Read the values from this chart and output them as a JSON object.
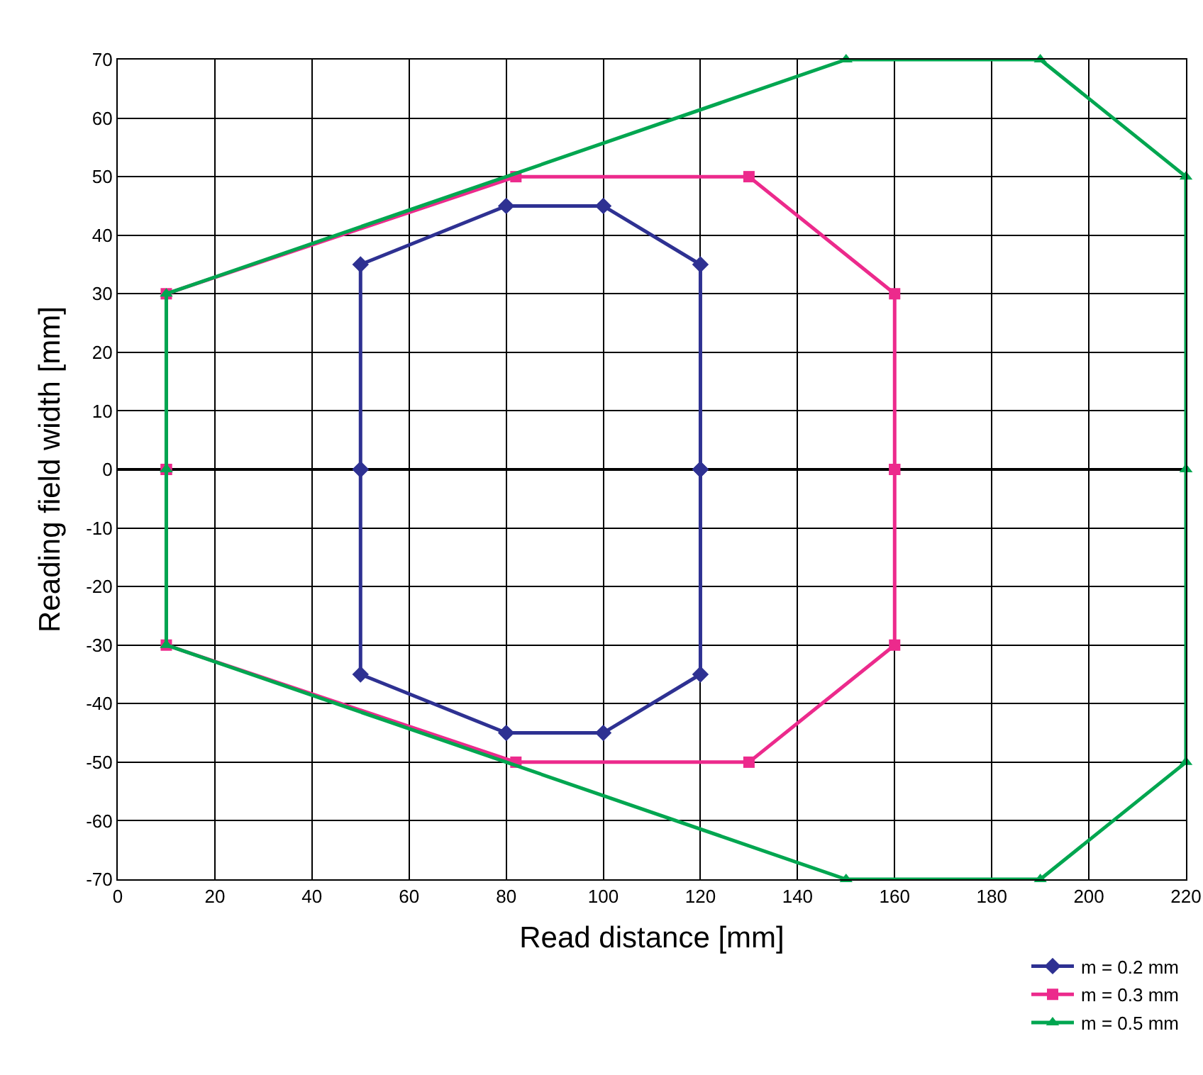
{
  "chart_data": {
    "type": "line",
    "xlabel": "Read distance [mm]",
    "ylabel": "Reading field width [mm]",
    "xlim": [
      0,
      220
    ],
    "ylim": [
      -70,
      70
    ],
    "xticks": [
      0,
      20,
      40,
      60,
      80,
      100,
      120,
      140,
      160,
      180,
      200,
      220
    ],
    "yticks": [
      -70,
      -60,
      -50,
      -40,
      -30,
      -20,
      -10,
      0,
      10,
      20,
      30,
      40,
      50,
      60,
      70
    ],
    "grid": true,
    "legend": "bottom right",
    "line_style": "solid",
    "series": [
      {
        "name": "m = 0.2 mm",
        "color": "#2e3192",
        "marker": "diamond",
        "x": [
          50,
          50,
          80,
          100,
          120,
          120
        ],
        "values": [
          0,
          35,
          45,
          45,
          35,
          0
        ]
      },
      {
        "color": "#2e3192",
        "marker": "diamond",
        "x": [
          50,
          50,
          80,
          100,
          120,
          120
        ],
        "values": [
          0,
          -35,
          -45,
          -45,
          -35,
          0
        ]
      },
      {
        "name": "m = 0.3 mm",
        "color": "#ec2a8c",
        "marker": "square",
        "x": [
          10,
          10,
          82,
          130,
          160,
          160
        ],
        "values": [
          0,
          30,
          50,
          50,
          30,
          0
        ]
      },
      {
        "color": "#ec2a8c",
        "marker": "square",
        "x": [
          10,
          10,
          82,
          130,
          160,
          160
        ],
        "values": [
          0,
          -30,
          -50,
          -50,
          -30,
          0
        ]
      },
      {
        "name": "m = 0.5 mm",
        "color": "#00a650",
        "marker": "triangle",
        "x": [
          10,
          10,
          150,
          190,
          220,
          220
        ],
        "values": [
          0,
          30,
          70,
          70,
          50,
          0
        ]
      },
      {
        "color": "#00a650",
        "marker": "triangle",
        "x": [
          10,
          10,
          150,
          190,
          220,
          220
        ],
        "values": [
          0,
          -30,
          -70,
          -70,
          -50,
          0
        ]
      }
    ]
  }
}
